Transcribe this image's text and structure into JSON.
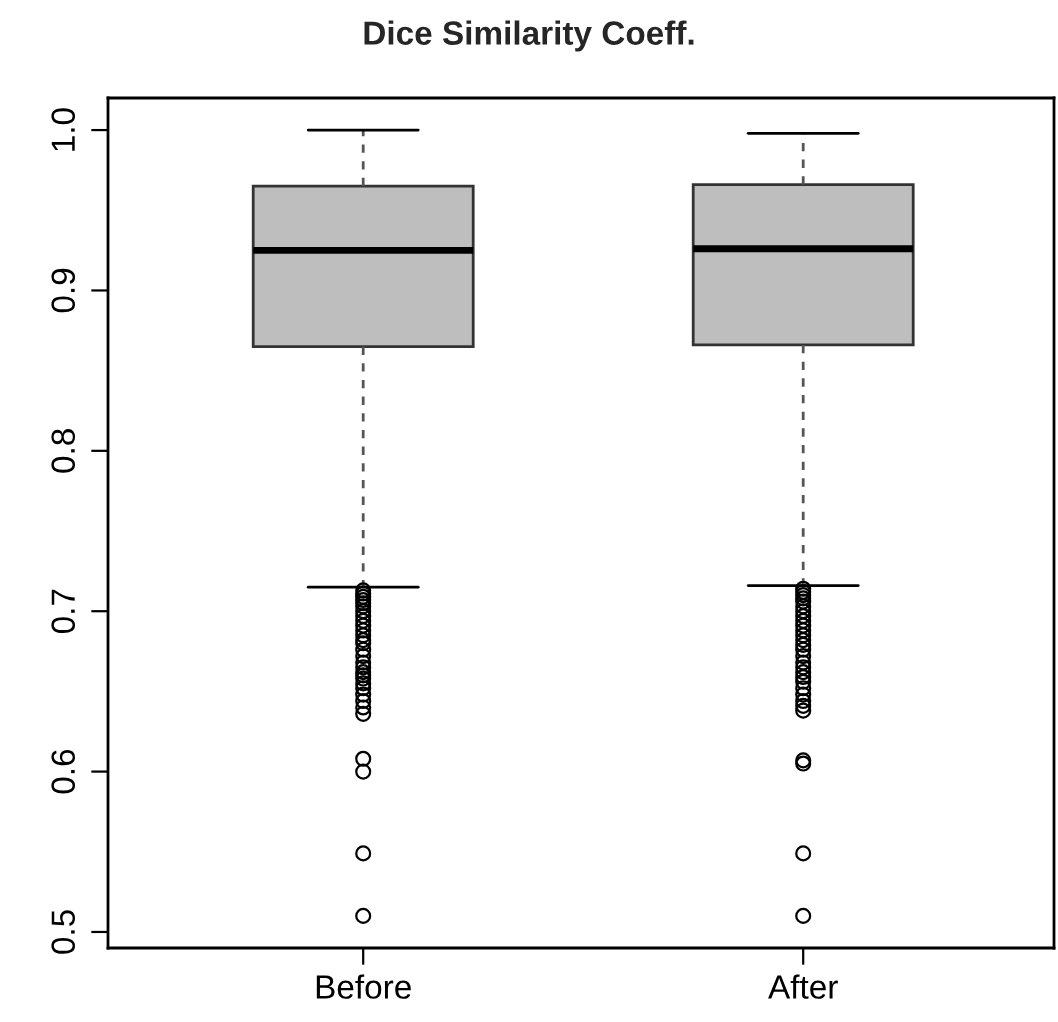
{
  "chart_data": {
    "type": "box",
    "title": "Dice Similarity Coeff.",
    "categories": [
      "Before",
      "After"
    ],
    "series": [
      {
        "color": "#bebebe",
        "boxes": [
          {
            "low": 0.715,
            "q1": 0.865,
            "median": 0.925,
            "q3": 0.965,
            "high": 1.0,
            "outliers": [
              0.713,
              0.711,
              0.709,
              0.707,
              0.705,
              0.703,
              0.7,
              0.697,
              0.694,
              0.691,
              0.688,
              0.685,
              0.682,
              0.68,
              0.676,
              0.672,
              0.668,
              0.665,
              0.662,
              0.66,
              0.658,
              0.655,
              0.652,
              0.648,
              0.644,
              0.64,
              0.636,
              0.608,
              0.6,
              0.549,
              0.51
            ]
          },
          {
            "low": 0.716,
            "q1": 0.866,
            "median": 0.926,
            "q3": 0.966,
            "high": 0.998,
            "outliers": [
              0.714,
              0.712,
              0.71,
              0.708,
              0.706,
              0.703,
              0.7,
              0.697,
              0.694,
              0.691,
              0.688,
              0.685,
              0.682,
              0.679,
              0.676,
              0.672,
              0.668,
              0.665,
              0.662,
              0.659,
              0.656,
              0.652,
              0.648,
              0.644,
              0.641,
              0.638,
              0.607,
              0.605,
              0.549,
              0.51
            ]
          }
        ]
      }
    ],
    "ylim": [
      0.49,
      1.02
    ],
    "yticks": [
      0.5,
      0.6,
      0.7,
      0.8,
      0.9,
      {
        "value": 1.0,
        "label": "1.0"
      }
    ],
    "grid": false,
    "legend": false
  }
}
